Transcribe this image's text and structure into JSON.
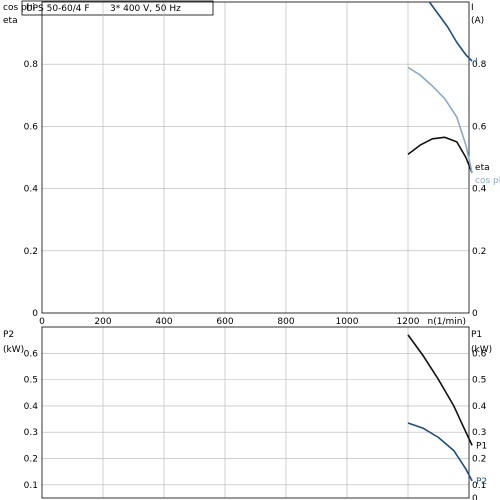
{
  "title": {
    "model": "UPS 50-60/4 F",
    "spec": "3* 400 V, 50 Hz"
  },
  "chart_data": [
    {
      "type": "line",
      "xlabel": "n(1/min)",
      "ylabel_left": [
        "cos phi",
        "eta"
      ],
      "ylabel_right": [
        "I",
        "(A)"
      ],
      "xlim": [
        0,
        1400
      ],
      "ylim": [
        0,
        1.0
      ],
      "xticks": [
        0,
        200,
        400,
        600,
        800,
        1000,
        1200
      ],
      "yticks_left": [
        0,
        0.2,
        0.4,
        0.6,
        0.8
      ],
      "yticks_right": [
        0,
        0.2,
        0.4,
        0.6,
        0.8
      ],
      "grid": true,
      "series": [
        {
          "name": "I",
          "color": "#1a4f86",
          "x": [
            1270,
            1300,
            1330,
            1360,
            1390,
            1410
          ],
          "y": [
            1.0,
            0.96,
            0.92,
            0.87,
            0.83,
            0.81
          ]
        },
        {
          "name": "eta",
          "color": "#111111",
          "x": [
            1200,
            1240,
            1280,
            1320,
            1360,
            1390,
            1410
          ],
          "y": [
            0.51,
            0.54,
            0.56,
            0.565,
            0.55,
            0.5,
            0.45
          ]
        },
        {
          "name": "cos phi",
          "color": "#8aaac8",
          "x": [
            1200,
            1240,
            1280,
            1320,
            1360,
            1390,
            1410
          ],
          "y": [
            0.79,
            0.765,
            0.73,
            0.69,
            0.63,
            0.54,
            0.45
          ]
        }
      ]
    },
    {
      "type": "line",
      "xlabel": "",
      "ylabel_left": [
        "P2",
        "(kW)"
      ],
      "ylabel_right": [
        "P1",
        "(kW)"
      ],
      "xlim": [
        0,
        1400
      ],
      "ylim": [
        0.05,
        0.7
      ],
      "xticks": [
        0,
        200,
        400,
        600,
        800,
        1000,
        1200
      ],
      "yticks_left": [
        0.1,
        0.2,
        0.3,
        0.4,
        0.5,
        0.6
      ],
      "yticks_right": [
        0,
        0.1,
        0.2,
        0.3,
        0.4,
        0.5,
        0.6
      ],
      "grid": true,
      "series": [
        {
          "name": "P1",
          "color": "#111111",
          "x": [
            1200,
            1250,
            1300,
            1350,
            1390,
            1410
          ],
          "y": [
            0.67,
            0.59,
            0.5,
            0.4,
            0.3,
            0.25
          ]
        },
        {
          "name": "P2",
          "color": "#1a4f86",
          "x": [
            1200,
            1250,
            1300,
            1350,
            1390,
            1410
          ],
          "y": [
            0.335,
            0.315,
            0.28,
            0.23,
            0.16,
            0.115
          ]
        }
      ]
    }
  ]
}
